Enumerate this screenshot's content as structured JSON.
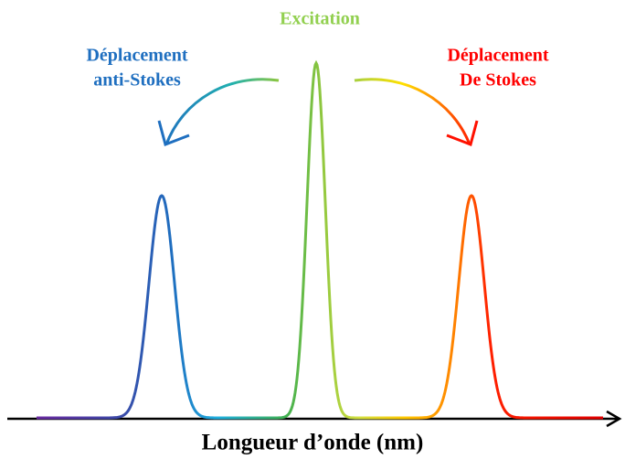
{
  "title": "Excitation",
  "left_label": [
    "Déplacement",
    "anti-Stokes"
  ],
  "right_label": [
    "Déplacement",
    "De Stokes"
  ],
  "axis_label": "Longueur d’onde (nm)"
}
